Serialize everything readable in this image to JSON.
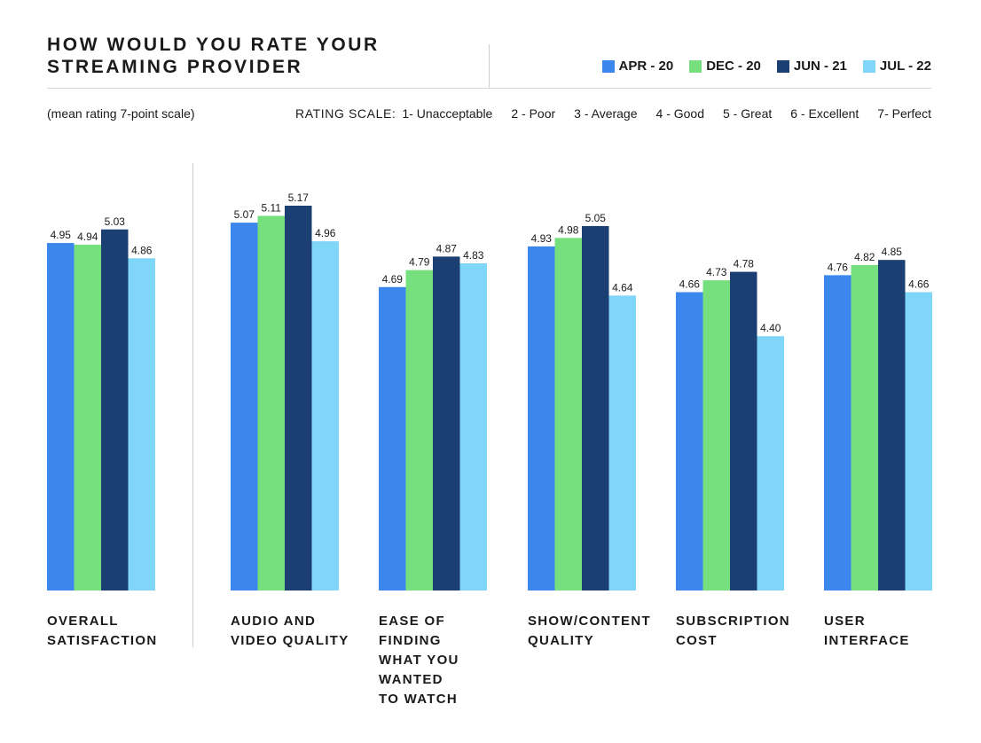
{
  "header": {
    "title_line1": "HOW WOULD YOU RATE YOUR",
    "title_line2": "STREAMING PROVIDER",
    "subtitle": "(mean rating 7-point scale)",
    "rating_scale": {
      "label": "RATING SCALE:",
      "items": [
        "1- Unacceptable",
        "2 - Poor",
        "3 - Average",
        "4 - Good",
        "5 - Great",
        "6 - Excellent",
        "7- Perfect"
      ]
    }
  },
  "legend": [
    {
      "label": "APR - 20",
      "color": "#3b87ee"
    },
    {
      "label": "DEC - 20",
      "color": "#76e07f"
    },
    {
      "label": "JUN - 21",
      "color": "#1c3f73"
    },
    {
      "label": "JUL - 22",
      "color": "#7fd6f8"
    }
  ],
  "chart_data": {
    "type": "bar",
    "title": "HOW WOULD YOU RATE YOUR STREAMING PROVIDER",
    "categories": [
      "OVERALL\nSATISFACTION",
      "AUDIO AND\nVIDEO QUALITY",
      "EASE OF\nFINDING\nWHAT YOU\nWANTED\nTO WATCH",
      "SHOW/CONTENT\nQUALITY",
      "SUBSCRIPTION\nCOST",
      "USER\nINTERFACE"
    ],
    "series": [
      {
        "name": "APR - 20",
        "color": "#3b87ee",
        "values": [
          4.95,
          5.07,
          4.69,
          4.93,
          4.66,
          4.76
        ]
      },
      {
        "name": "DEC - 20",
        "color": "#76e07f",
        "values": [
          4.94,
          5.11,
          4.79,
          4.98,
          4.73,
          4.82
        ]
      },
      {
        "name": "JUN - 21",
        "color": "#1c3f73",
        "values": [
          5.03,
          5.17,
          4.87,
          5.05,
          4.78,
          4.85
        ]
      },
      {
        "name": "JUL - 22",
        "color": "#7fd6f8",
        "values": [
          4.86,
          4.96,
          4.83,
          4.64,
          4.4,
          4.66
        ]
      }
    ],
    "ylim": [
      2.9,
      5.17
    ],
    "grid": false,
    "legend_position": "top-right"
  }
}
